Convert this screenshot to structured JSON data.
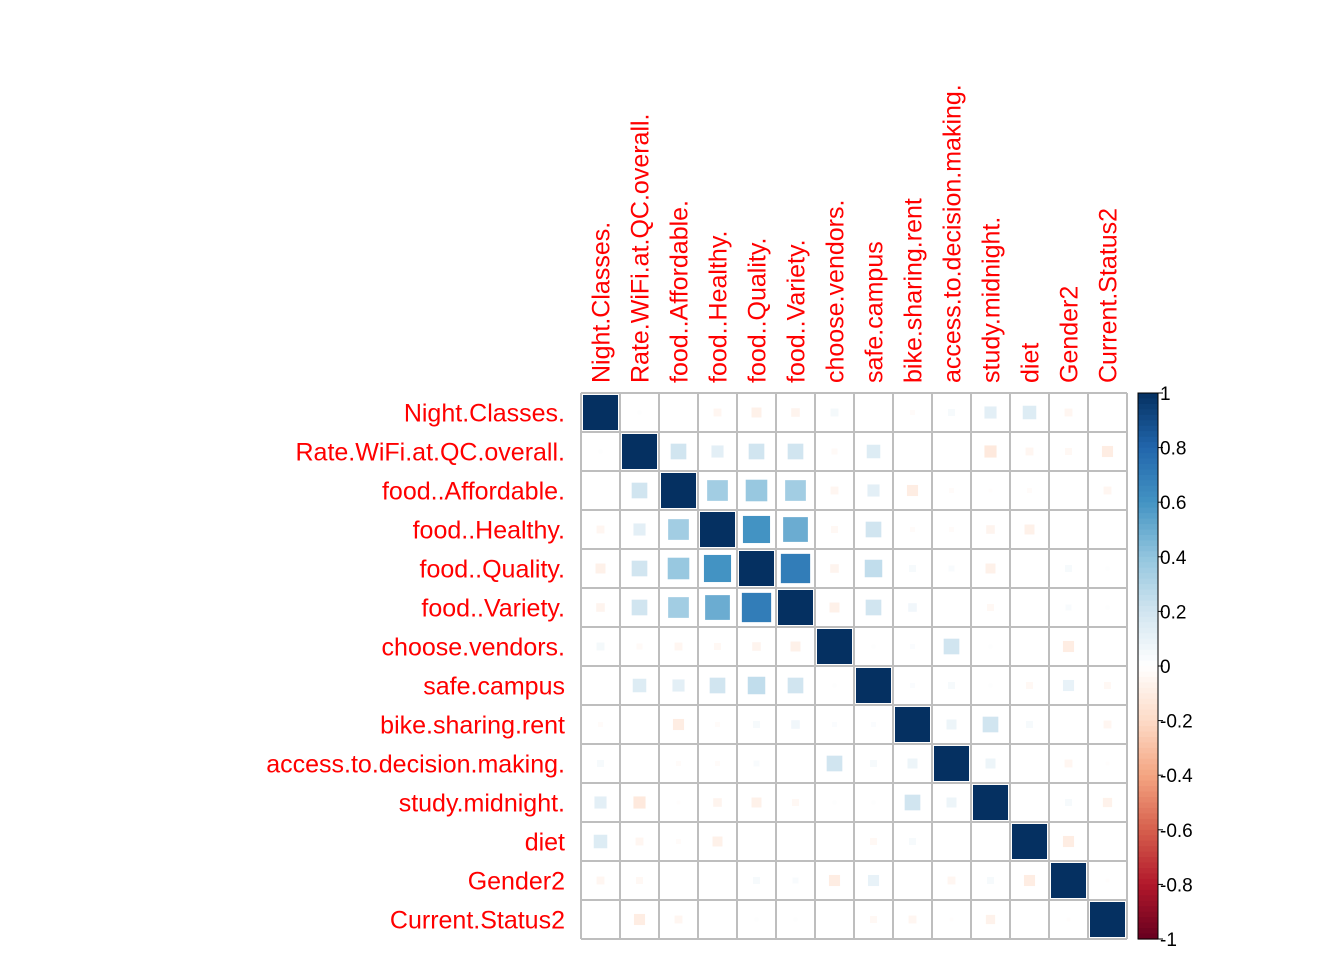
{
  "chart_data": {
    "type": "heatmap",
    "title": "",
    "variables": [
      "Night.Classes.",
      "Rate.WiFi.at.QC.overall.",
      "food..Affordable.",
      "food..Healthy.",
      "food..Quality.",
      "food..Variety.",
      "choose.vendors.",
      "safe.campus",
      "bike.sharing.rent",
      "access.to.decision.making.",
      "study.midnight.",
      "diet",
      "Gender2",
      "Current.Status2"
    ],
    "matrix": [
      [
        1,
        0.01,
        0,
        -0.05,
        -0.08,
        -0.06,
        0.05,
        0,
        -0.02,
        0.04,
        0.12,
        0.15,
        -0.05,
        0
      ],
      [
        0.01,
        1,
        0.2,
        0.12,
        0.2,
        0.2,
        -0.03,
        0.15,
        0,
        0,
        -0.12,
        -0.05,
        -0.04,
        -0.1
      ],
      [
        0,
        0.2,
        1,
        0.35,
        0.38,
        0.35,
        -0.05,
        0.12,
        -0.1,
        -0.02,
        -0.01,
        -0.02,
        0,
        -0.05
      ],
      [
        -0.05,
        0.12,
        0.35,
        1,
        0.6,
        0.5,
        -0.04,
        0.2,
        -0.02,
        -0.02,
        -0.06,
        -0.08,
        0,
        0
      ],
      [
        -0.08,
        0.2,
        0.38,
        0.6,
        1,
        0.7,
        -0.06,
        0.25,
        0.04,
        0.03,
        -0.08,
        0,
        0.04,
        0.01
      ],
      [
        -0.06,
        0.2,
        0.35,
        0.5,
        0.7,
        1,
        -0.08,
        0.2,
        0.06,
        0,
        -0.04,
        0,
        0.03,
        0.01
      ],
      [
        0.05,
        -0.03,
        -0.05,
        -0.04,
        -0.06,
        -0.08,
        1,
        0.01,
        0.02,
        0.2,
        0.01,
        0,
        -0.1,
        0
      ],
      [
        0,
        0.15,
        0.12,
        0.2,
        0.25,
        0.2,
        0.01,
        1,
        0.02,
        0.04,
        0.01,
        -0.04,
        0.1,
        -0.04
      ],
      [
        -0.02,
        0,
        -0.1,
        -0.02,
        0.04,
        0.06,
        0.02,
        0.02,
        1,
        0.08,
        0.2,
        0.04,
        0,
        -0.05
      ],
      [
        0.04,
        0,
        -0.02,
        -0.02,
        0.03,
        0,
        0.2,
        0.04,
        0.08,
        1,
        0.08,
        0,
        -0.05,
        -0.01
      ],
      [
        0.12,
        -0.12,
        -0.01,
        -0.06,
        -0.08,
        -0.04,
        0.01,
        0.01,
        0.2,
        0.08,
        1,
        0,
        0.04,
        -0.07
      ],
      [
        0.15,
        -0.05,
        -0.02,
        -0.08,
        0,
        0,
        0,
        -0.04,
        0.04,
        0,
        0,
        1,
        -0.1,
        0
      ],
      [
        -0.05,
        -0.04,
        0,
        0,
        0.04,
        0.03,
        -0.1,
        0.1,
        0,
        -0.05,
        0.04,
        -0.1,
        1,
        -0.01
      ],
      [
        0,
        -0.1,
        -0.05,
        0,
        0.01,
        0.01,
        0,
        -0.04,
        -0.05,
        -0.01,
        -0.07,
        0,
        -0.01,
        1
      ]
    ],
    "colorbar": {
      "range": [
        -1,
        1
      ],
      "ticks": [
        "1",
        "0.8",
        "0.6",
        "0.4",
        "0.2",
        "0",
        "-0.2",
        "-0.4",
        "-0.6",
        "-0.8",
        "-1"
      ],
      "tick_values": [
        1,
        0.8,
        0.6,
        0.4,
        0.2,
        0,
        -0.2,
        -0.4,
        -0.6,
        -0.8,
        -1
      ],
      "colors": [
        "#67001F",
        "#B2182B",
        "#D6604D",
        "#F4A582",
        "#FDDBC7",
        "#FFFFFF",
        "#D1E5F0",
        "#92C5DE",
        "#4393C3",
        "#2166AC",
        "#053061"
      ]
    },
    "label_color": "#FF0000",
    "grid": true
  }
}
